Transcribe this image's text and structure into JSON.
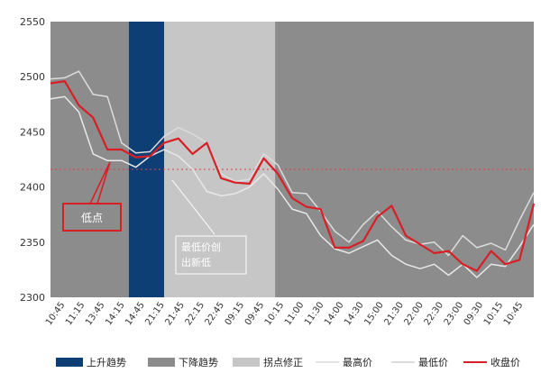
{
  "chart_data": {
    "type": "line",
    "y_ticks": [
      "2550",
      "2500",
      "2450",
      "2400",
      "2350",
      "2300"
    ],
    "ylim": [
      2300,
      2550
    ],
    "x_ticks": [
      "10:45",
      "11:15",
      "13:45",
      "14:15",
      "14:45",
      "21:15",
      "21:45",
      "22:15",
      "22:45",
      "09:15",
      "09:45",
      "10:15",
      "11:00",
      "11:30",
      "14:00",
      "14:30",
      "15:00",
      "21:30",
      "22:00",
      "22:30",
      "23:00",
      "09:30",
      "10:15",
      "10:45"
    ],
    "grid": false,
    "legend_position": "bottom",
    "reference_line": {
      "value": 2416,
      "style": "dotted",
      "color": "#e0404a"
    },
    "regions": [
      {
        "legend": "上升趋势",
        "from": 5.5,
        "to": 8.0,
        "color": "#0e3f74"
      },
      {
        "legend": "下降趋势",
        "from": 0,
        "to": 5.5,
        "color": "#8c8c8c"
      },
      {
        "legend": "拐点修正",
        "from": 8.0,
        "to": 15.8,
        "color": "#c6c6c6"
      },
      {
        "legend": "",
        "from": 15.8,
        "to": 34,
        "color": "#8c8c8c"
      }
    ],
    "series": [
      {
        "name": "最高价",
        "color": "#dcdcdc",
        "x": [
          0,
          1,
          2,
          3,
          4,
          5,
          6,
          7,
          8,
          9,
          10,
          11,
          12,
          13,
          14,
          15,
          16,
          17,
          18,
          19,
          20,
          21,
          22,
          23,
          24,
          25,
          26,
          27,
          28,
          29,
          30,
          31,
          32,
          33,
          34
        ],
        "values": [
          2498,
          2499,
          2505,
          2484,
          2482,
          2440,
          2431,
          2432,
          2446,
          2454,
          2448,
          2440,
          2412,
          2405,
          2407,
          2430,
          2420,
          2395,
          2394,
          2378,
          2360,
          2350,
          2366,
          2378,
          2364,
          2352,
          2348,
          2350,
          2338,
          2356,
          2345,
          2349,
          2343,
          2370,
          2395
        ]
      },
      {
        "name": "最低价",
        "color": "#e8e8e8",
        "x": [
          0,
          1,
          2,
          3,
          4,
          5,
          6,
          7,
          8,
          9,
          10,
          11,
          12,
          13,
          14,
          15,
          16,
          17,
          18,
          19,
          20,
          21,
          22,
          23,
          24,
          25,
          26,
          27,
          28,
          29,
          30,
          31,
          32,
          33,
          34
        ],
        "values": [
          2480,
          2482,
          2468,
          2430,
          2424,
          2424,
          2418,
          2428,
          2434,
          2428,
          2416,
          2396,
          2392,
          2394,
          2400,
          2412,
          2398,
          2380,
          2376,
          2356,
          2344,
          2340,
          2346,
          2352,
          2338,
          2330,
          2326,
          2330,
          2320,
          2330,
          2318,
          2330,
          2328,
          2346,
          2366
        ]
      },
      {
        "name": "收盘价",
        "color": "#d81f26",
        "x": [
          0,
          1,
          2,
          3,
          4,
          5,
          6,
          7,
          8,
          9,
          10,
          11,
          12,
          13,
          14,
          15,
          16,
          17,
          18,
          19,
          20,
          21,
          22,
          23,
          24,
          25,
          26,
          27,
          28,
          29,
          30,
          31,
          32,
          33,
          34
        ],
        "values": [
          2494,
          2496,
          2474,
          2463,
          2434,
          2434,
          2427,
          2428,
          2440,
          2444,
          2430,
          2440,
          2408,
          2404,
          2403,
          2426,
          2412,
          2390,
          2382,
          2380,
          2345,
          2345,
          2351,
          2373,
          2383,
          2356,
          2348,
          2340,
          2342,
          2330,
          2324,
          2342,
          2330,
          2334,
          2385
        ]
      }
    ],
    "annotations": [
      {
        "text": "低点"
      },
      {
        "text": "最低价创出新低"
      }
    ]
  },
  "legend": [
    {
      "label": "上升趋势",
      "kind": "swatch",
      "color": "#0e3f74"
    },
    {
      "label": "下降趋势",
      "kind": "swatch",
      "color": "#8c8c8c"
    },
    {
      "label": "拐点修正",
      "kind": "swatch",
      "color": "#c6c6c6"
    },
    {
      "label": "最高价",
      "kind": "line",
      "color": "#dcdcdc"
    },
    {
      "label": "最低价",
      "kind": "line",
      "color": "#d0d0d0"
    },
    {
      "label": "收盘价",
      "kind": "line",
      "color": "#d81f26"
    }
  ]
}
